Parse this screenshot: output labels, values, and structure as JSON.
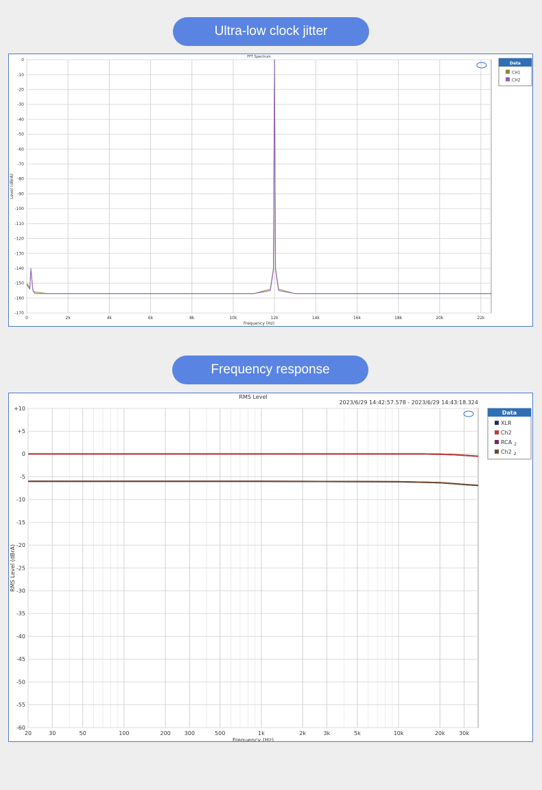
{
  "sections": [
    {
      "heading": "Ultra-low clock jitter"
    },
    {
      "heading": "Frequency response"
    }
  ],
  "chart_data": [
    {
      "type": "line",
      "title": "FFT Spectrum",
      "xlabel": "Frequency (Hz)",
      "ylabel": "Level (dBrA)",
      "xlim": [
        0,
        22500
      ],
      "ylim": [
        -170,
        0
      ],
      "x_ticks": [
        0,
        2000,
        4000,
        6000,
        8000,
        10000,
        12000,
        14000,
        16000,
        18000,
        20000,
        22000
      ],
      "x_tick_labels": [
        "0",
        "2k",
        "4k",
        "6k",
        "8k",
        "10k",
        "12k",
        "14k",
        "16k",
        "18k",
        "20k",
        "22k"
      ],
      "y_ticks": [
        0,
        -10,
        -20,
        -30,
        -40,
        -50,
        -60,
        -70,
        -80,
        -90,
        -100,
        -110,
        -120,
        -130,
        -140,
        -150,
        -160,
        -170
      ],
      "grid": true,
      "legend_title": "Data",
      "legend_position": "top-right outside",
      "series": [
        {
          "name": "CH1",
          "color": "#8a8a2a",
          "x": [
            0,
            150,
            200,
            300,
            400,
            1000,
            4000,
            8000,
            11000,
            11800,
            11950,
            12000,
            12050,
            12200,
            13000,
            16000,
            20000,
            22500
          ],
          "y": [
            -150,
            -153,
            -141,
            -155,
            -156,
            -157,
            -157,
            -157,
            -157,
            -154,
            -140,
            0,
            -140,
            -154,
            -157,
            -157,
            -157,
            -157
          ]
        },
        {
          "name": "CH2",
          "color": "#8f5fbf",
          "x": [
            0,
            150,
            200,
            300,
            400,
            1000,
            4000,
            8000,
            11000,
            11800,
            11950,
            12000,
            12050,
            12200,
            13000,
            16000,
            20000,
            22500
          ],
          "y": [
            -151,
            -154,
            -140,
            -155,
            -157,
            -157,
            -157,
            -157,
            -157,
            -155,
            -141,
            0,
            -141,
            -155,
            -157,
            -157,
            -157,
            -157
          ]
        }
      ]
    },
    {
      "type": "line",
      "title": "RMS Level",
      "timestamp": "2023/6/29 14:42:57.578 -   2023/6/29 14:43:18.324",
      "xlabel": "Frequency (Hz)",
      "ylabel": "RMS Level (dBrA)",
      "x_scale": "log",
      "xlim": [
        20,
        38000
      ],
      "ylim": [
        -60,
        10
      ],
      "x_ticks": [
        20,
        30,
        50,
        100,
        200,
        300,
        500,
        1000,
        2000,
        3000,
        5000,
        10000,
        20000,
        30000
      ],
      "x_tick_labels": [
        "20",
        "30",
        "50",
        "100",
        "200",
        "300",
        "500",
        "1k",
        "2k",
        "3k",
        "5k",
        "10k",
        "20k",
        "30k"
      ],
      "y_ticks": [
        10,
        5,
        0,
        -5,
        -10,
        -15,
        -20,
        -25,
        -30,
        -35,
        -40,
        -45,
        -50,
        -55,
        -60
      ],
      "y_tick_labels": [
        "+10",
        "+5",
        "0",
        "-5",
        "-10",
        "-15",
        "-20",
        "-25",
        "-30",
        "-35",
        "-40",
        "-45",
        "-50",
        "-55",
        "-60"
      ],
      "grid": true,
      "legend_title": "Data",
      "legend_position": "top-right outside",
      "series": [
        {
          "name": "XLR",
          "color": "#1f2f6e",
          "x": [
            20,
            100,
            1000,
            10000,
            15000,
            20000,
            25000,
            30000,
            38000
          ],
          "y": [
            0,
            0,
            0,
            0,
            0,
            -0.05,
            -0.15,
            -0.3,
            -0.5
          ]
        },
        {
          "name": "Ch2",
          "color": "#c03a3a",
          "x": [
            20,
            100,
            1000,
            10000,
            15000,
            20000,
            25000,
            30000,
            38000
          ],
          "y": [
            0,
            0,
            0,
            0,
            0,
            -0.05,
            -0.15,
            -0.3,
            -0.5
          ]
        },
        {
          "name": "RCA",
          "suffix": "2",
          "color": "#7b2a5a",
          "x": [
            20,
            100,
            1000,
            5000,
            10000,
            15000,
            20000,
            25000,
            30000,
            38000
          ],
          "y": [
            -6,
            -6,
            -6,
            -6.05,
            -6.1,
            -6.2,
            -6.3,
            -6.5,
            -6.7,
            -6.9
          ]
        },
        {
          "name": "Ch2",
          "suffix": "2",
          "color": "#6b4a2e",
          "x": [
            20,
            100,
            1000,
            5000,
            10000,
            15000,
            20000,
            25000,
            30000,
            38000
          ],
          "y": [
            -6,
            -6,
            -6,
            -6.05,
            -6.1,
            -6.2,
            -6.3,
            -6.5,
            -6.7,
            -6.9
          ]
        }
      ]
    }
  ]
}
